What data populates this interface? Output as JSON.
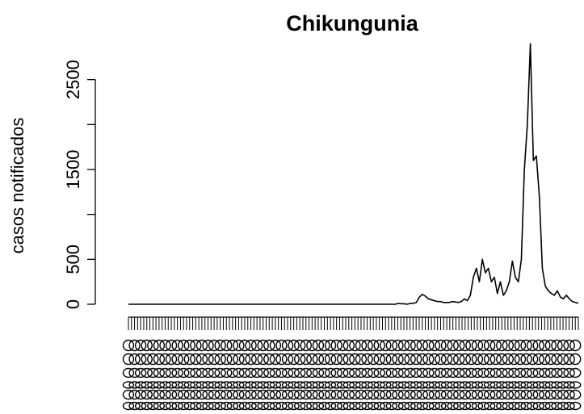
{
  "chart_data": {
    "type": "line",
    "title": "Chikungunia",
    "xlabel": "",
    "ylabel": "casos notificados",
    "ylim": [
      0,
      3000
    ],
    "yticks_labeled": [
      "0",
      "500",
      "1500",
      "2500"
    ],
    "yticks": [
      0,
      500,
      1000,
      1500,
      2000,
      2500
    ],
    "grid": false,
    "x_tick_count": 148,
    "x_tick_labels_legible": false,
    "series": [
      {
        "values": [
          0,
          0,
          0,
          0,
          0,
          0,
          0,
          0,
          0,
          0,
          0,
          0,
          0,
          0,
          0,
          0,
          0,
          0,
          0,
          0,
          0,
          0,
          0,
          0,
          0,
          0,
          0,
          0,
          0,
          0,
          0,
          0,
          0,
          0,
          0,
          0,
          0,
          0,
          0,
          0,
          0,
          0,
          0,
          0,
          0,
          0,
          0,
          0,
          0,
          0,
          0,
          0,
          0,
          0,
          0,
          0,
          0,
          0,
          0,
          0,
          0,
          0,
          0,
          0,
          0,
          0,
          0,
          0,
          0,
          0,
          0,
          0,
          0,
          0,
          0,
          0,
          0,
          0,
          0,
          0,
          0,
          0,
          0,
          0,
          0,
          0,
          0,
          0,
          0,
          0,
          10,
          5,
          5,
          0,
          10,
          10,
          20,
          80,
          110,
          90,
          60,
          50,
          40,
          30,
          30,
          20,
          20,
          20,
          30,
          25,
          20,
          30,
          60,
          40,
          100,
          300,
          400,
          250,
          500,
          350,
          400,
          250,
          300,
          120,
          250,
          100,
          150,
          250,
          480,
          300,
          250,
          500,
          1500,
          2000,
          2900,
          1600,
          1650,
          1200,
          400,
          200,
          150,
          120,
          100,
          150,
          80,
          60,
          100,
          60,
          30,
          20,
          10
        ]
      }
    ]
  }
}
